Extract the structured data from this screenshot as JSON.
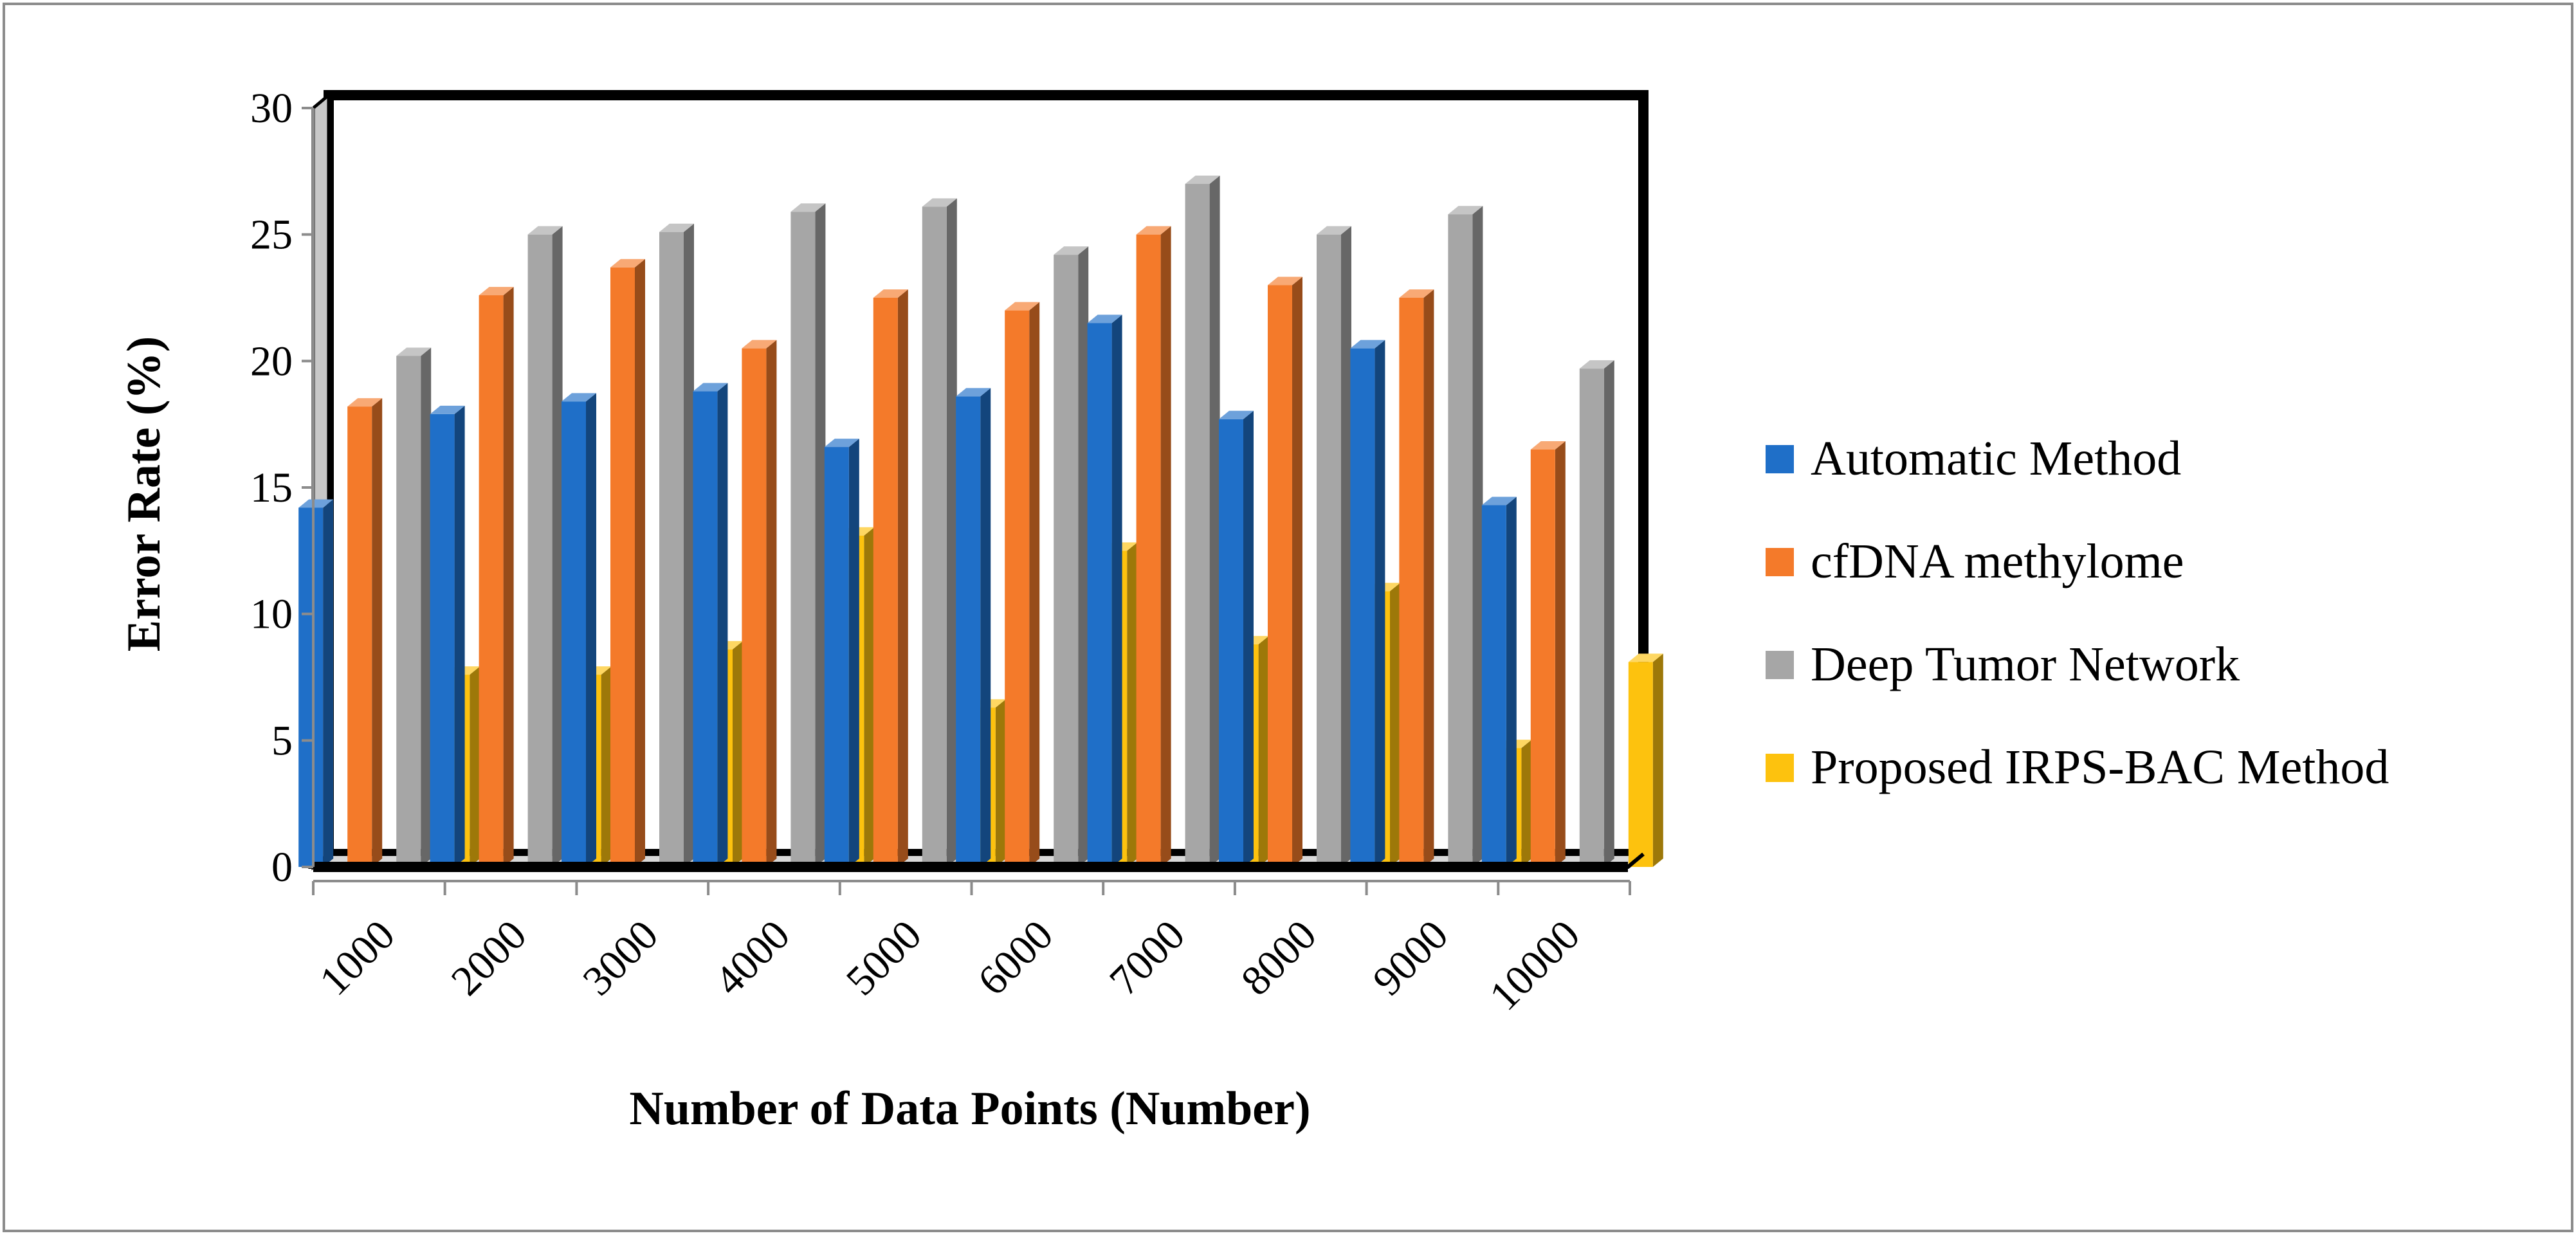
{
  "chart_data": {
    "type": "bar",
    "title": "",
    "xlabel": "Number of Data Points (Number)",
    "ylabel": "Error Rate (%)",
    "ylim": [
      0,
      30
    ],
    "yticks": [
      0,
      5,
      10,
      15,
      20,
      25,
      30
    ],
    "categories": [
      "1000",
      "2000",
      "3000",
      "4000",
      "5000",
      "6000",
      "7000",
      "8000",
      "9000",
      "10000"
    ],
    "series": [
      {
        "name": "Automatic Method",
        "color": "#1F6FC8",
        "values": [
          14.2,
          17.9,
          18.4,
          18.8,
          16.6,
          18.6,
          21.5,
          17.7,
          20.5,
          14.3
        ]
      },
      {
        "name": "cfDNA methylome",
        "color": "#F47A2A",
        "values": [
          18.2,
          22.6,
          23.7,
          20.5,
          22.5,
          22.0,
          25.0,
          23.0,
          22.5,
          16.5
        ]
      },
      {
        "name": "Deep Tumor Network",
        "color": "#A6A6A6",
        "values": [
          20.2,
          25.0,
          25.1,
          25.9,
          26.1,
          24.2,
          27.0,
          25.0,
          25.8,
          19.7
        ]
      },
      {
        "name": "Proposed IRPS-BAC Method",
        "color": "#FDC20E",
        "values": [
          7.6,
          7.6,
          8.6,
          13.1,
          6.3,
          12.5,
          8.8,
          10.9,
          4.7,
          8.1
        ]
      }
    ],
    "legend_position": "right",
    "grid": false
  }
}
